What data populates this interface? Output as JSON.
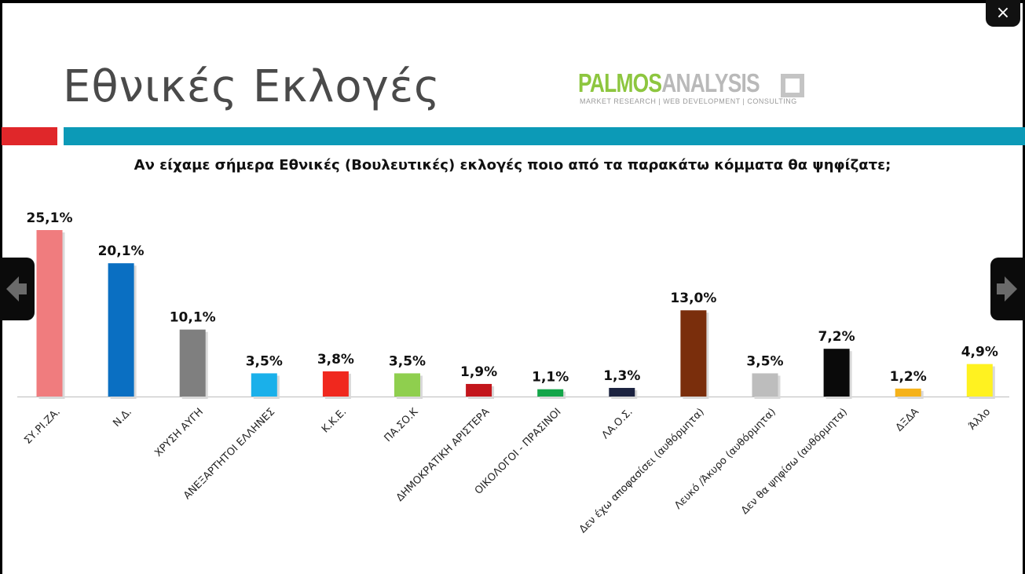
{
  "window": {
    "close_label": "×",
    "prev_icon": "arrow-left-icon",
    "next_icon": "arrow-right-icon"
  },
  "slide": {
    "title": "Εθνικές Εκλογές",
    "logo": {
      "name_part1": "PALMOS",
      "name_part2": "ANALYSIS",
      "tagline": "MARKET RESEARCH | WEB DEVELOPMENT | CONSULTING"
    },
    "accent_colors": {
      "red": "#e0272a",
      "teal": "#0c9ab7"
    },
    "question": "Αν είχαμε σήμερα Εθνικές (Βουλευτικές) εκλογές ποιο από τα παρακάτω κόμματα θα ψηφίζατε;"
  },
  "chart_data": {
    "type": "bar",
    "title": "Αν είχαμε σήμερα Εθνικές (Βουλευτικές) εκλογές ποιο από τα παρακάτω κόμματα θα ψηφίζατε;",
    "categories": [
      "ΣΥ.ΡΙ.ΖΑ.",
      "Ν.Δ.",
      "ΧΡΥΣΗ ΑΥΓΗ",
      "ΑΝΕΞΑΡΤΗΤΟΙ ΕΛΛΗΝΕΣ",
      "Κ.Κ.Ε.",
      "ΠΑ.ΣΟ.Κ",
      "ΔΗΜΟΚΡΑΤΙΚΗ ΑΡΙΣΤΕΡΑ",
      "ΟΙΚΟΛΟΓΟΙ - ΠΡΑΣΙΝΟΙ",
      "ΛΑ.Ο.Σ.",
      "Δεν έχω αποφασίσει (αυθόρμητα)",
      "Λευκό /Άκυρο (αυθόρμητα)",
      "Δεν θα ψηφίσω (αυθόρμητα)",
      "ΔΞΔΑ",
      "Άλλο"
    ],
    "values": [
      25.1,
      20.1,
      10.1,
      3.5,
      3.8,
      3.5,
      1.9,
      1.1,
      1.3,
      13.0,
      3.5,
      7.2,
      1.2,
      4.9
    ],
    "value_labels": [
      "25,1%",
      "20,1%",
      "10,1%",
      "3,5%",
      "3,8%",
      "3,5%",
      "1,9%",
      "1,1%",
      "1,3%",
      "13,0%",
      "3,5%",
      "7,2%",
      "1,2%",
      "4,9%"
    ],
    "colors": [
      "#f07c7e",
      "#0a6fc2",
      "#7f7f7f",
      "#1ab0ea",
      "#f0281e",
      "#8fcf4e",
      "#c3161c",
      "#14a64a",
      "#1c2340",
      "#7a2e0c",
      "#bdbdbd",
      "#0a0a0a",
      "#f5b21a",
      "#fff220"
    ],
    "xlabel": "",
    "ylabel": "",
    "ylim": [
      0,
      25.1
    ],
    "grid": false,
    "legend": "none"
  }
}
